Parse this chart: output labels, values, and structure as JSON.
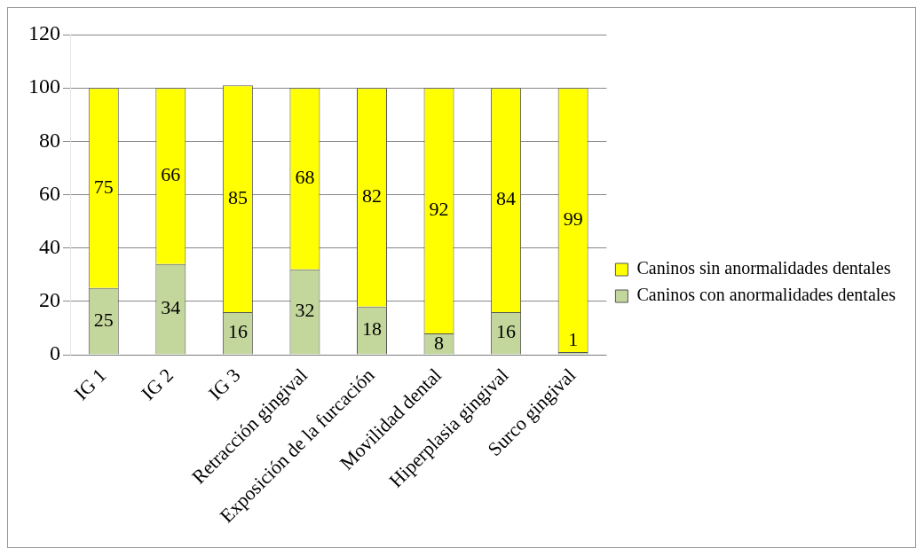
{
  "chart_data": {
    "type": "bar",
    "stacked": true,
    "categories": [
      "IG 1",
      "IG 2",
      "IG 3",
      "Retracción gingival",
      "Exposición de la furcación",
      "Movilidad dental",
      "Hiperplasia gingival",
      "Surco gingival"
    ],
    "series": [
      {
        "name": "Caninos con anormalidades dentales",
        "color": "#c3d69b",
        "values": [
          25,
          34,
          16,
          32,
          18,
          8,
          16,
          1
        ]
      },
      {
        "name": "Caninos sin anormalidades dentales",
        "color": "#ffff00",
        "values": [
          75,
          66,
          85,
          68,
          82,
          92,
          84,
          99
        ]
      }
    ],
    "ylim": [
      0,
      120
    ],
    "yticks": [
      0,
      20,
      40,
      60,
      80,
      100,
      120
    ],
    "grid": "y",
    "legend": "right",
    "data_labels": true
  }
}
